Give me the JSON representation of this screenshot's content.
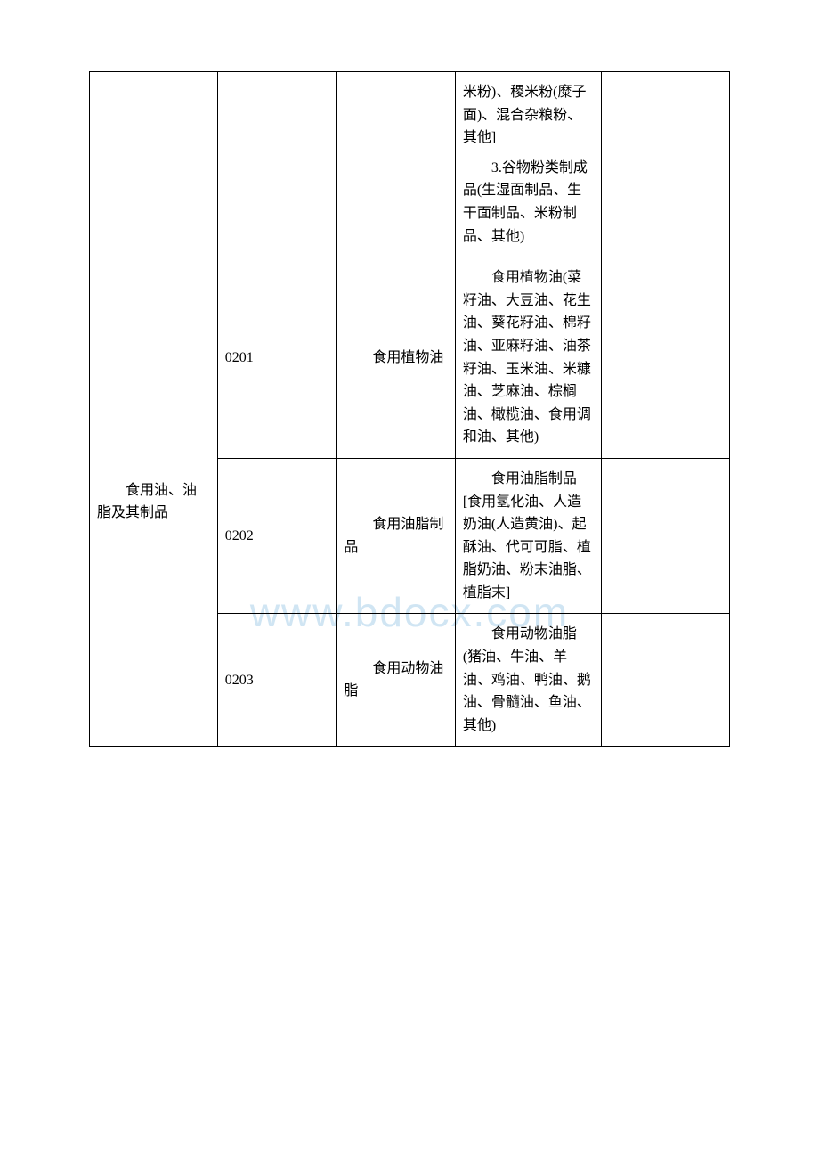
{
  "watermark": "www.bdocx.com",
  "table": {
    "rows": [
      {
        "col1": "",
        "col2": "",
        "col3": "",
        "col4_parts": [
          "米粉)、稷米粉(糜子面)、混合杂粮粉、其他]",
          "3.谷物粉类制成品(生湿面制品、生干面制品、米粉制品、其他)"
        ],
        "col5": ""
      },
      {
        "col1": "食用油、油脂及其制品",
        "col1_rowspan": 3,
        "col2": "0201",
        "col3": "食用植物油",
        "col4": "食用植物油(菜籽油、大豆油、花生油、葵花籽油、棉籽油、亚麻籽油、油茶籽油、玉米油、米糠油、芝麻油、棕榈油、橄榄油、食用调和油、其他)",
        "col5": ""
      },
      {
        "col2": "0202",
        "col3": "食用油脂制品",
        "col4": "食用油脂制品[食用氢化油、人造奶油(人造黄油)、起酥油、代可可脂、植脂奶油、粉末油脂、植脂末]",
        "col5": ""
      },
      {
        "col2": "0203",
        "col3": "食用动物油脂",
        "col4": "食用动物油脂(猪油、牛油、羊油、鸡油、鸭油、鹅油、骨髓油、鱼油、其他)",
        "col5": ""
      }
    ]
  },
  "style": {
    "border_color": "#000000",
    "background_color": "#ffffff",
    "text_color": "#000000",
    "font_size": 16,
    "watermark_color": "rgba(120,180,220,0.35)"
  }
}
